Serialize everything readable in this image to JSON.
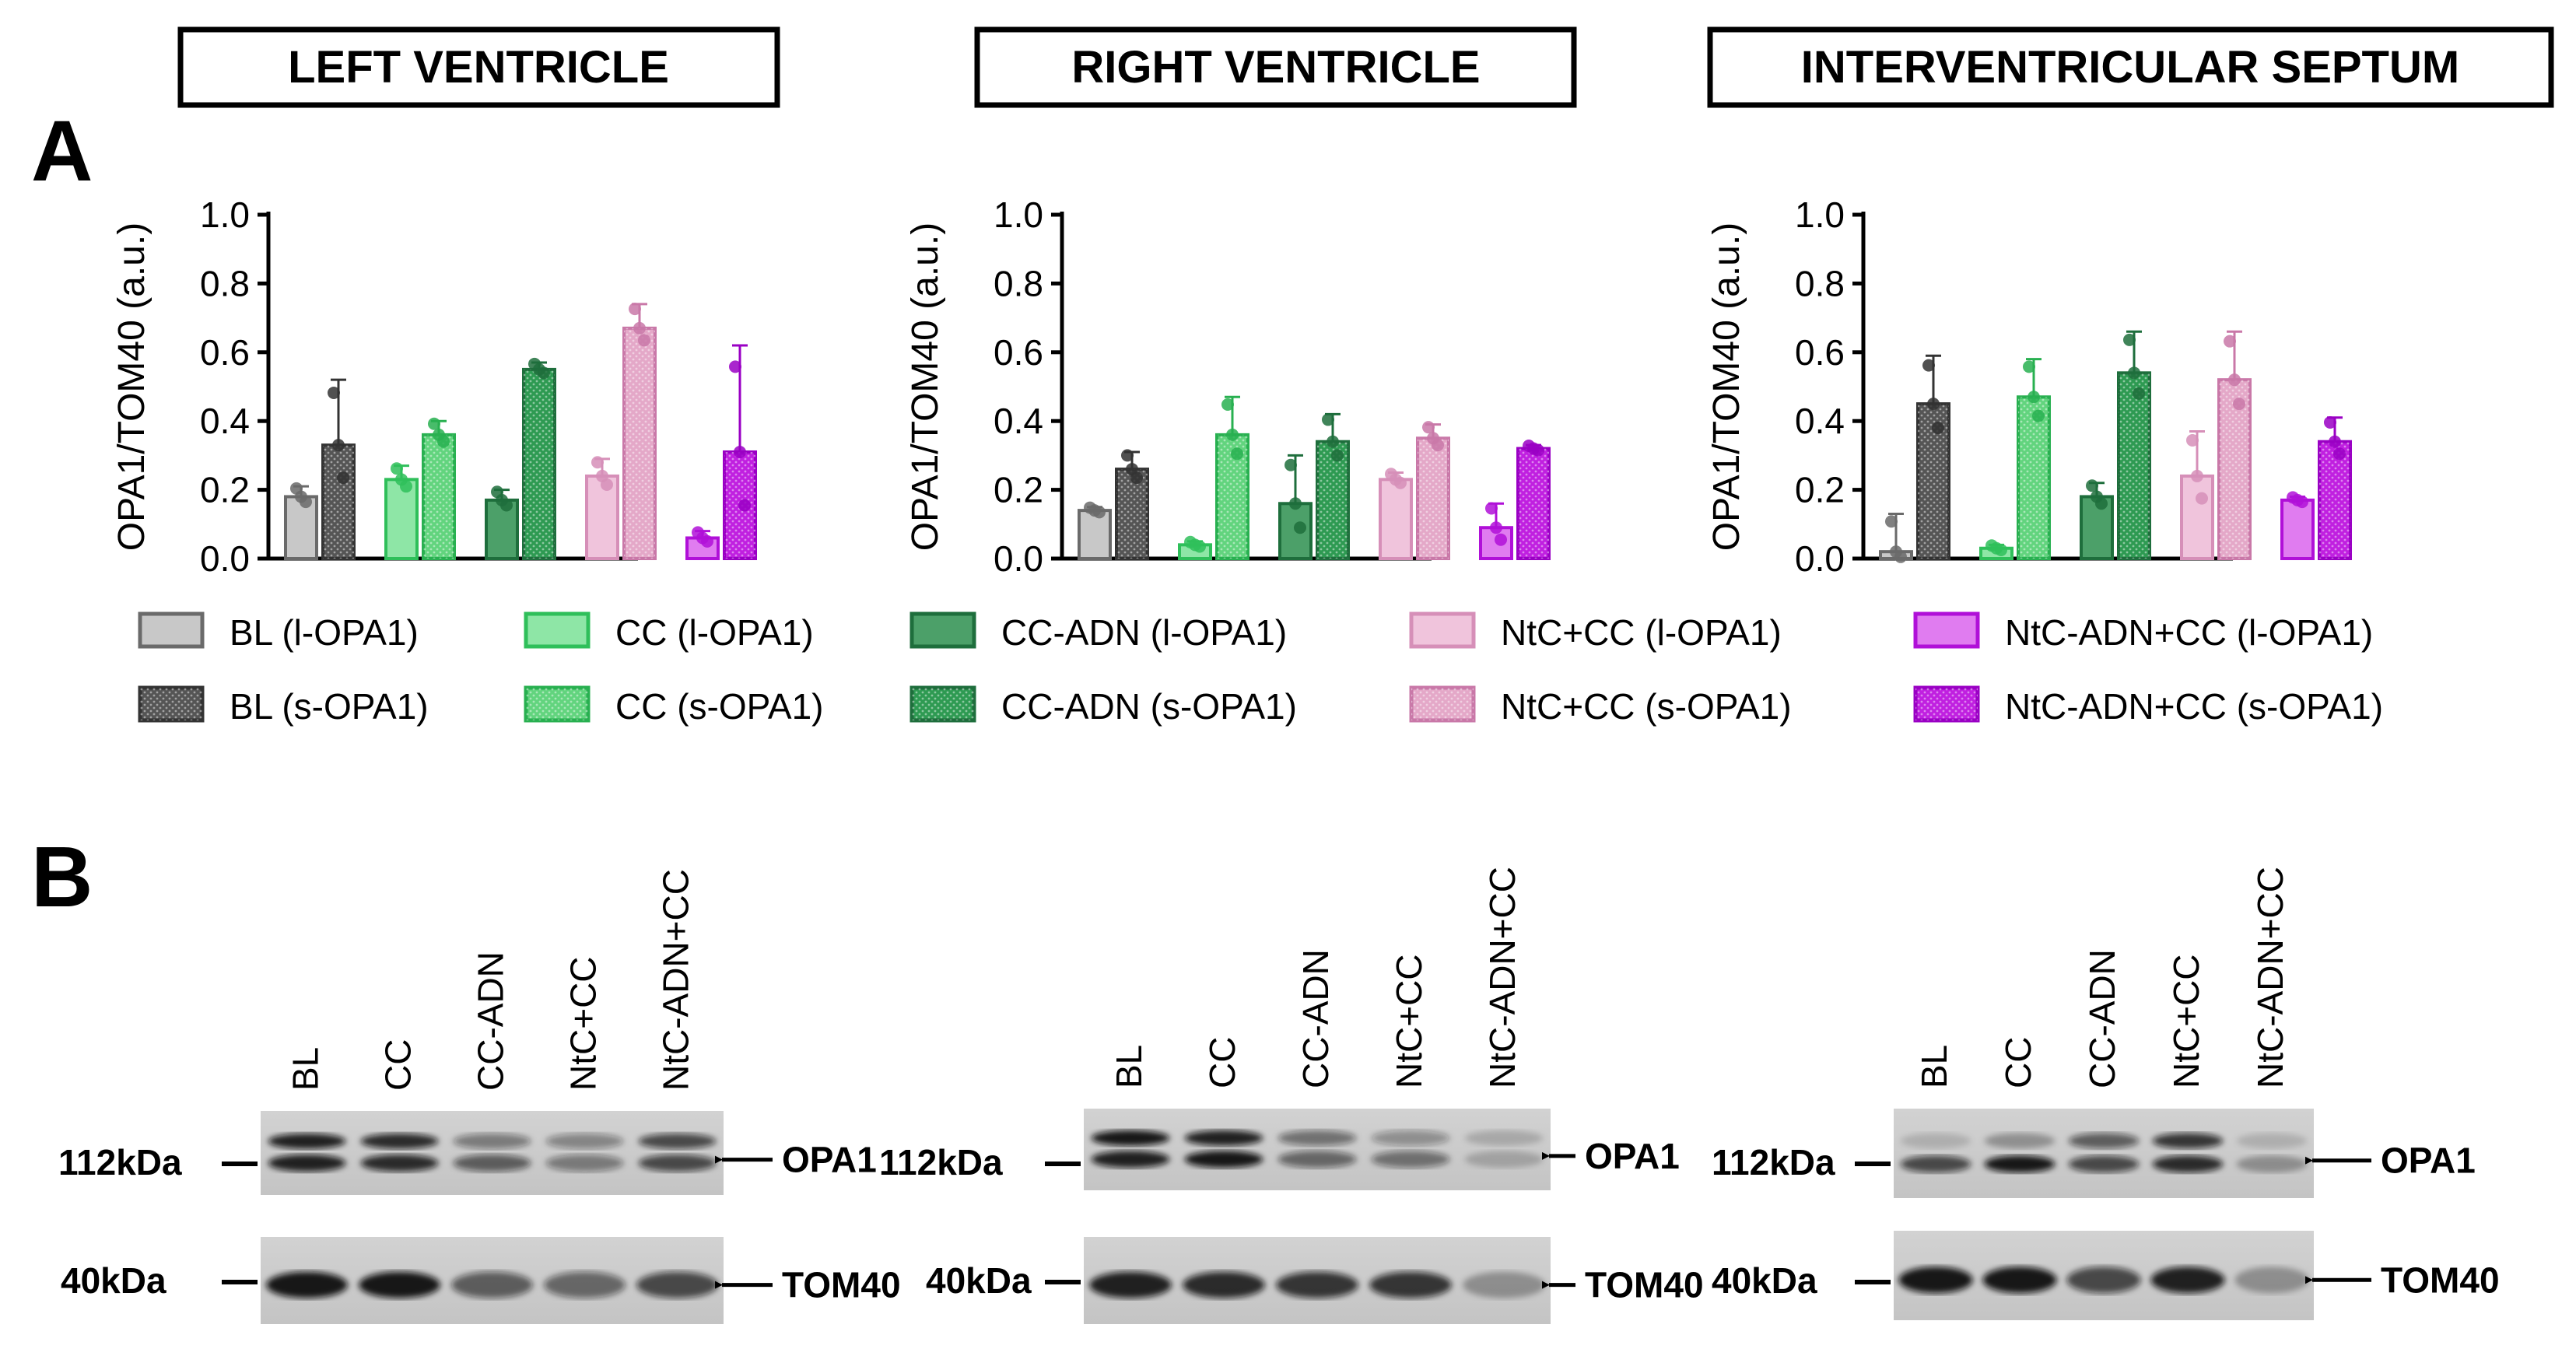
{
  "panels": {
    "a_label": "A",
    "b_label": "B"
  },
  "chart_data": {
    "type": "bar",
    "ylabel": "OPA1/TOM40 (a.u.)",
    "ylim": [
      0,
      1.0
    ],
    "yticks": [
      "0.0",
      "0.2",
      "0.4",
      "0.6",
      "0.8",
      "1.0"
    ],
    "groups": [
      "BL",
      "CC",
      "CC-ADN",
      "NtC+CC",
      "NtC-ADN+CC"
    ],
    "legend": [
      "BL  (l-OPA1)",
      "BL (s-OPA1)",
      "CC (l-OPA1)",
      "CC (s-OPA1)",
      "CC-ADN (l-OPA1)",
      "CC-ADN (s-OPA1)",
      "NtC+CC (l-OPA1)",
      "NtC+CC (s-OPA1)",
      "NtC-ADN+CC (l-OPA1)",
      "NtC-ADN+CC (s-OPA1)"
    ],
    "charts": [
      {
        "title": "LEFT VENTRICLE",
        "l_opa1": [
          0.18,
          0.23,
          0.17,
          0.24,
          0.06
        ],
        "l_err": [
          0.03,
          0.04,
          0.03,
          0.05,
          0.02
        ],
        "s_opa1": [
          0.33,
          0.36,
          0.55,
          0.67,
          0.31
        ],
        "s_err": [
          0.19,
          0.04,
          0.02,
          0.07,
          0.31
        ]
      },
      {
        "title": "RIGHT VENTRICLE",
        "l_opa1": [
          0.14,
          0.04,
          0.16,
          0.23,
          0.09
        ],
        "l_err": [
          0.01,
          0.01,
          0.14,
          0.02,
          0.07
        ],
        "s_opa1": [
          0.26,
          0.36,
          0.34,
          0.35,
          0.32
        ],
        "s_err": [
          0.05,
          0.11,
          0.08,
          0.04,
          0.01
        ]
      },
      {
        "title": "INTERVENTRICULAR SEPTUM",
        "l_opa1": [
          0.02,
          0.03,
          0.18,
          0.24,
          0.17
        ],
        "l_err": [
          0.11,
          0.01,
          0.04,
          0.13,
          0.01
        ],
        "s_opa1": [
          0.45,
          0.47,
          0.54,
          0.52,
          0.34
        ],
        "s_err": [
          0.14,
          0.11,
          0.12,
          0.14,
          0.07
        ]
      }
    ]
  },
  "blots": [
    {
      "lanes": [
        "BL",
        "CC",
        "CC-ADN",
        "NtC+CC",
        "NtC-ADN+CC"
      ],
      "marker_top": "112kDa",
      "marker_bottom": "40kDa",
      "band_top": "OPA1",
      "band_bottom": "TOM40"
    },
    {
      "lanes": [
        "BL",
        "CC",
        "CC-ADN",
        "NtC+CC",
        "NtC-ADN+CC"
      ],
      "marker_top": "112kDa",
      "marker_bottom": "40kDa",
      "band_top": "OPA1",
      "band_bottom": "TOM40"
    },
    {
      "lanes": [
        "BL",
        "CC",
        "CC-ADN",
        "NtC+CC",
        "NtC-ADN+CC"
      ],
      "marker_top": "112kDa",
      "marker_bottom": "40kDa",
      "band_top": "OPA1",
      "band_bottom": "TOM40"
    }
  ],
  "colors": {
    "bl_l": "#c8c8c8",
    "bl_s": "#555555",
    "cc_l": "#8ee6a6",
    "cc_s": "#62d47e",
    "ccadn_l": "#4ca069",
    "ccadn_s": "#2e9a52",
    "ntc_l": "#f0c4dc",
    "ntc_s": "#e4a8c8",
    "ntcadn_l": "#e07cf0",
    "ntcadn_s": "#c020e0",
    "bl_l_stroke": "#6a6a6a",
    "bl_s_stroke": "#333333",
    "cc_l_stroke": "#2fbf5a",
    "cc_s_stroke": "#28b050",
    "ccadn_l_stroke": "#1e6e3c",
    "ccadn_s_stroke": "#1e6e3c",
    "ntc_l_stroke": "#d68fb8",
    "ntc_s_stroke": "#c978a8",
    "ntcadn_l_stroke": "#b010d8",
    "ntcadn_s_stroke": "#9a00c4"
  }
}
